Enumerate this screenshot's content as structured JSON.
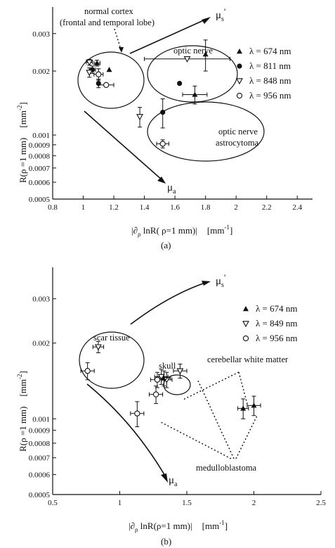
{
  "chart_data": [
    {
      "panel_label": "(a)",
      "type": "scatter",
      "xlabel": "|∂ρ lnR( ρ=1 mm)|   [mm⁻¹]",
      "ylabel": "R(ρ =1 mm)   [mm⁻²]",
      "xlim": [
        0.8,
        2.5
      ],
      "ylim": [
        0.0005,
        0.004
      ],
      "yscale": "log",
      "x_ticks": [
        0.8,
        1,
        1.2,
        1.4,
        1.6,
        1.8,
        2,
        2.2,
        2.4
      ],
      "x_tick_labels": [
        "0.8",
        "1",
        "1.2",
        "1.4",
        "1.6",
        "1.8",
        "2",
        "2.2",
        "2.4"
      ],
      "y_ticks": [
        0.0005,
        0.0006,
        0.0007,
        0.0008,
        0.0009,
        0.001,
        0.002,
        0.003
      ],
      "y_tick_labels": [
        "0.0005",
        "0.0006",
        "0.0007",
        "0.0008",
        "0.0009",
        "0.001",
        "0.002",
        "0.003"
      ],
      "legend_position": "right",
      "series": [
        {
          "name": "λ = 674 nm",
          "marker": "triangle-up",
          "points": [
            {
              "x": 1.09,
              "y": 0.00218,
              "xerr": 0.02,
              "yerr": 7e-05
            },
            {
              "x": 1.17,
              "y": 0.00203,
              "xerr": 0.0,
              "yerr": 0.0
            },
            {
              "x": 1.8,
              "y": 0.0024,
              "xerr": 0.0,
              "yerr": 0.0004
            },
            {
              "x": 1.73,
              "y": 0.00155,
              "xerr": 0.08,
              "yerr": 0.00015
            }
          ]
        },
        {
          "name": "λ = 811 nm",
          "marker": "circle-filled",
          "points": [
            {
              "x": 1.06,
              "y": 0.00203,
              "xerr": 0.02,
              "yerr": 8e-05
            },
            {
              "x": 1.1,
              "y": 0.00175,
              "xerr": 0.0,
              "yerr": 8e-05
            },
            {
              "x": 1.63,
              "y": 0.00175,
              "xerr": 0.0,
              "yerr": 0.0
            },
            {
              "x": 1.52,
              "y": 0.00128,
              "xerr": 0.0,
              "yerr": 0.0002
            }
          ]
        },
        {
          "name": "λ = 848 nm",
          "marker": "triangle-down-open",
          "points": [
            {
              "x": 1.04,
              "y": 0.0022,
              "xerr": 0.02,
              "yerr": 7e-05
            },
            {
              "x": 1.04,
              "y": 0.00197,
              "xerr": 0.0,
              "yerr": 0.0001
            },
            {
              "x": 1.68,
              "y": 0.00228,
              "xerr": 0.28,
              "yerr": 0.0
            },
            {
              "x": 1.37,
              "y": 0.00122,
              "xerr": 0.0,
              "yerr": 0.00013
            }
          ]
        },
        {
          "name": "λ = 956 nm",
          "marker": "circle-open",
          "points": [
            {
              "x": 1.1,
              "y": 0.00193,
              "xerr": 0.03,
              "yerr": 0.00012
            },
            {
              "x": 1.15,
              "y": 0.00172,
              "xerr": 0.05,
              "yerr": 0.0
            },
            {
              "x": 1.52,
              "y": 0.00091,
              "xerr": 0.04,
              "yerr": 4e-05
            }
          ]
        }
      ],
      "annotations": [
        "normal cortex",
        "(frontal and temporal lobe)",
        "optic nerve",
        "optic nerve",
        "astrocytoma",
        "μs'",
        "μa"
      ]
    },
    {
      "panel_label": "(b)",
      "type": "scatter",
      "xlabel": "|∂ρ lnR(ρ=1 mm)|   [mm⁻¹]",
      "ylabel": "R(ρ =1 mm)   [mm⁻²]",
      "xlim": [
        0.5,
        2.5
      ],
      "ylim": [
        0.0005,
        0.004
      ],
      "yscale": "log",
      "x_ticks": [
        0.5,
        1,
        1.5,
        2,
        2.5
      ],
      "x_tick_labels": [
        "0.5",
        "1",
        "1.5",
        "2",
        "2.5"
      ],
      "y_ticks": [
        0.0005,
        0.0006,
        0.0007,
        0.0008,
        0.0009,
        0.001,
        0.002,
        0.003
      ],
      "y_tick_labels": [
        "0.0005",
        "0.0006",
        "0.0007",
        "0.0008",
        "0.0009",
        "0.001",
        "0.002",
        "0.003"
      ],
      "legend_position": "top-right",
      "series": [
        {
          "name": "λ = 674 nm",
          "marker": "triangle-up",
          "points": [
            {
              "x": 1.33,
              "y": 0.00145,
              "xerr": 0.05,
              "yerr": 0.0001
            },
            {
              "x": 1.92,
              "y": 0.0011,
              "xerr": 0.04,
              "yerr": 0.0001
            },
            {
              "x": 2.0,
              "y": 0.00113,
              "xerr": 0.05,
              "yerr": 0.0001
            }
          ]
        },
        {
          "name": "λ = 849 nm",
          "marker": "triangle-down-open",
          "points": [
            {
              "x": 0.84,
              "y": 0.00193,
              "xerr": 0.04,
              "yerr": 0.0001
            },
            {
              "x": 1.31,
              "y": 0.00147,
              "xerr": 0.05,
              "yerr": 0.0001
            },
            {
              "x": 1.45,
              "y": 0.00155,
              "xerr": 0.05,
              "yerr": 0.0001
            },
            {
              "x": 1.35,
              "y": 0.00143,
              "xerr": 0.04,
              "yerr": 0.0001
            }
          ]
        },
        {
          "name": "λ = 956 nm",
          "marker": "circle-open",
          "points": [
            {
              "x": 0.76,
              "y": 0.00155,
              "xerr": 0.05,
              "yerr": 0.00012
            },
            {
              "x": 1.28,
              "y": 0.00143,
              "xerr": 0.05,
              "yerr": 0.0001
            },
            {
              "x": 1.27,
              "y": 0.00125,
              "xerr": 0.05,
              "yerr": 0.0001
            },
            {
              "x": 1.13,
              "y": 0.00105,
              "xerr": 0.05,
              "yerr": 0.00012
            }
          ]
        }
      ],
      "annotations": [
        "scar tissue",
        "skull",
        "cerebellar white matter",
        "medulloblastoma",
        "μs'",
        "μa"
      ]
    }
  ],
  "panels": [
    {
      "caption": "(a)",
      "ylabel_left": "R(ρ =1 mm)",
      "ylabel_unit": "[mm",
      "ylabel_exp": "-2",
      "ylabel_close": "]",
      "xlabel_left": "|∂",
      "xlabel_sub": "ρ",
      "xlabel_mid": " lnR( ρ=1 mm)|",
      "xlabel_unit": "[mm",
      "xlabel_exp": "-1",
      "xlabel_close": "]",
      "ann_cortex_1": "normal cortex",
      "ann_cortex_2": "(frontal and temporal lobe)",
      "ann_optic_nerve": "optic nerve",
      "ann_astro_1": "optic nerve",
      "ann_astro_2": "astrocytoma",
      "mu_s": "μ",
      "mu_s_sub": "s",
      "mu_s_prime": "'",
      "mu_a": "μ",
      "mu_a_sub": "a"
    },
    {
      "caption": "(b)",
      "ylabel_left": "R(ρ =1 mm)",
      "ylabel_unit": "[mm",
      "ylabel_exp": "-2",
      "ylabel_close": "]",
      "xlabel_left": "|∂",
      "xlabel_sub": "ρ",
      "xlabel_mid": " lnR(ρ=1 mm)|",
      "xlabel_unit": "[mm",
      "xlabel_exp": "-1",
      "xlabel_close": "]",
      "ann_scar": "scar tissue",
      "ann_skull": "skull",
      "ann_cerebellar": "cerebellar white matter",
      "ann_medullo": "medulloblastoma",
      "mu_s": "μ",
      "mu_s_sub": "s",
      "mu_s_prime": "'",
      "mu_a": "μ",
      "mu_a_sub": "a"
    }
  ]
}
